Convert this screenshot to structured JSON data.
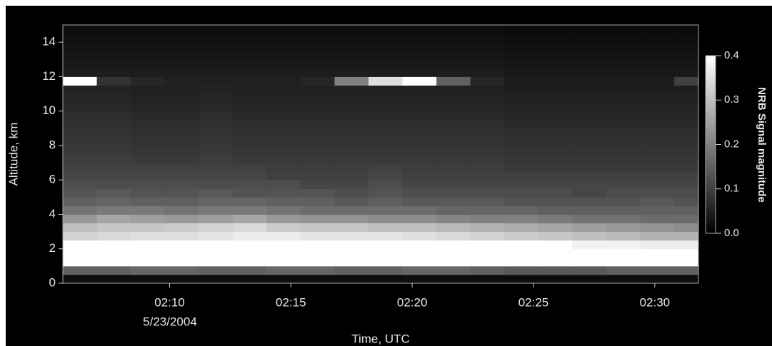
{
  "chart_data": {
    "type": "heatmap",
    "x_label": "Time, UTC",
    "y_label": "Altitude, km",
    "colorbar_label": "NRB Signal magnitude",
    "xlim": [
      5.6,
      31.8
    ],
    "ylim": [
      0,
      15
    ],
    "xticks": [
      {
        "value": 10,
        "label": "02:10"
      },
      {
        "value": 15,
        "label": "02:15"
      },
      {
        "value": 20,
        "label": "02:20"
      },
      {
        "value": 25,
        "label": "02:25"
      },
      {
        "value": 30,
        "label": "02:30"
      }
    ],
    "date_label": "5/23/2004",
    "yticks": [
      0,
      2,
      4,
      6,
      8,
      10,
      12,
      14
    ],
    "clim": [
      0,
      0.4
    ],
    "cticks": [
      {
        "value": 0.4,
        "label": "0.4"
      },
      {
        "value": 0.3,
        "label": "0.3"
      },
      {
        "value": 0.2,
        "label": "0.2"
      },
      {
        "value": 0.1,
        "label": "0.1"
      },
      {
        "value": 0,
        "label": "0.0"
      }
    ],
    "x_edges": [
      5.6,
      7,
      8.4,
      9.8,
      11.2,
      12.6,
      14,
      15.4,
      16.8,
      18.2,
      19.6,
      21,
      22.4,
      23.8,
      25.2,
      26.6,
      28,
      29.4,
      30.8,
      31.8
    ],
    "y_edges": [
      0,
      0.5,
      1,
      1.5,
      2,
      2.5,
      3,
      3.5,
      4,
      4.5,
      5,
      5.5,
      6,
      6.5,
      7,
      7.5,
      8,
      8.5,
      9,
      9.5,
      10,
      10.5,
      11,
      11.5,
      12,
      12.5,
      13,
      13.5,
      14,
      14.5,
      15
    ],
    "z": [
      [
        0.02,
        0.02,
        0.02,
        0.02,
        0.02,
        0.02,
        0.02,
        0.02,
        0.02,
        0.02,
        0.02,
        0.02,
        0.02,
        0.02,
        0.02,
        0.02,
        0.02,
        0.02,
        0.02
      ],
      [
        0.15,
        0.15,
        0.16,
        0.16,
        0.15,
        0.15,
        0.16,
        0.16,
        0.15,
        0.15,
        0.16,
        0.16,
        0.15,
        0.14,
        0.14,
        0.14,
        0.15,
        0.15,
        0.15
      ],
      [
        0.42,
        0.42,
        0.42,
        0.42,
        0.42,
        0.42,
        0.42,
        0.42,
        0.42,
        0.42,
        0.42,
        0.42,
        0.42,
        0.42,
        0.42,
        0.42,
        0.42,
        0.42,
        0.42
      ],
      [
        0.45,
        0.45,
        0.45,
        0.45,
        0.45,
        0.45,
        0.45,
        0.45,
        0.45,
        0.45,
        0.45,
        0.45,
        0.45,
        0.45,
        0.45,
        0.45,
        0.45,
        0.45,
        0.45
      ],
      [
        0.42,
        0.42,
        0.43,
        0.43,
        0.43,
        0.44,
        0.44,
        0.44,
        0.44,
        0.44,
        0.44,
        0.43,
        0.42,
        0.4,
        0.4,
        0.38,
        0.38,
        0.37,
        0.37
      ],
      [
        0.33,
        0.34,
        0.35,
        0.35,
        0.36,
        0.37,
        0.37,
        0.36,
        0.36,
        0.36,
        0.35,
        0.34,
        0.33,
        0.32,
        0.31,
        0.3,
        0.29,
        0.28,
        0.28
      ],
      [
        0.3,
        0.31,
        0.31,
        0.32,
        0.33,
        0.34,
        0.32,
        0.31,
        0.31,
        0.3,
        0.3,
        0.29,
        0.28,
        0.27,
        0.26,
        0.25,
        0.24,
        0.23,
        0.22
      ],
      [
        0.24,
        0.26,
        0.25,
        0.24,
        0.25,
        0.26,
        0.24,
        0.23,
        0.23,
        0.22,
        0.22,
        0.21,
        0.2,
        0.2,
        0.19,
        0.18,
        0.18,
        0.17,
        0.17
      ],
      [
        0.18,
        0.19,
        0.19,
        0.18,
        0.19,
        0.19,
        0.18,
        0.17,
        0.17,
        0.17,
        0.17,
        0.16,
        0.16,
        0.16,
        0.15,
        0.15,
        0.15,
        0.15,
        0.15
      ],
      [
        0.15,
        0.16,
        0.15,
        0.15,
        0.16,
        0.16,
        0.15,
        0.15,
        0.14,
        0.15,
        0.14,
        0.14,
        0.14,
        0.13,
        0.13,
        0.13,
        0.13,
        0.14,
        0.13
      ],
      [
        0.13,
        0.14,
        0.13,
        0.13,
        0.14,
        0.13,
        0.13,
        0.13,
        0.12,
        0.13,
        0.12,
        0.12,
        0.12,
        0.12,
        0.12,
        0.11,
        0.12,
        0.12,
        0.12
      ],
      [
        0.12,
        0.12,
        0.12,
        0.12,
        0.12,
        0.12,
        0.12,
        0.11,
        0.11,
        0.12,
        0.11,
        0.11,
        0.11,
        0.11,
        0.11,
        0.11,
        0.11,
        0.11,
        0.11
      ],
      [
        0.11,
        0.11,
        0.11,
        0.11,
        0.11,
        0.11,
        0.1,
        0.1,
        0.1,
        0.11,
        0.1,
        0.1,
        0.1,
        0.1,
        0.1,
        0.1,
        0.1,
        0.1,
        0.1
      ],
      [
        0.1,
        0.1,
        0.1,
        0.1,
        0.1,
        0.1,
        0.095,
        0.095,
        0.095,
        0.1,
        0.095,
        0.095,
        0.095,
        0.09,
        0.09,
        0.09,
        0.09,
        0.09,
        0.09
      ],
      [
        0.095,
        0.095,
        0.09,
        0.09,
        0.095,
        0.09,
        0.09,
        0.09,
        0.09,
        0.09,
        0.09,
        0.09,
        0.09,
        0.085,
        0.085,
        0.085,
        0.085,
        0.085,
        0.085
      ],
      [
        0.09,
        0.09,
        0.085,
        0.085,
        0.09,
        0.085,
        0.085,
        0.085,
        0.085,
        0.085,
        0.085,
        0.085,
        0.085,
        0.08,
        0.08,
        0.08,
        0.08,
        0.08,
        0.08
      ],
      [
        0.085,
        0.085,
        0.08,
        0.08,
        0.085,
        0.08,
        0.08,
        0.08,
        0.08,
        0.08,
        0.08,
        0.08,
        0.08,
        0.075,
        0.075,
        0.075,
        0.075,
        0.075,
        0.075
      ],
      [
        0.08,
        0.08,
        0.075,
        0.075,
        0.08,
        0.075,
        0.075,
        0.075,
        0.075,
        0.075,
        0.075,
        0.075,
        0.075,
        0.07,
        0.07,
        0.07,
        0.07,
        0.07,
        0.07
      ],
      [
        0.075,
        0.075,
        0.07,
        0.07,
        0.075,
        0.07,
        0.07,
        0.07,
        0.07,
        0.07,
        0.07,
        0.07,
        0.07,
        0.065,
        0.065,
        0.065,
        0.065,
        0.065,
        0.065
      ],
      [
        0.07,
        0.07,
        0.065,
        0.065,
        0.07,
        0.065,
        0.065,
        0.065,
        0.065,
        0.065,
        0.065,
        0.065,
        0.065,
        0.06,
        0.06,
        0.06,
        0.06,
        0.06,
        0.06
      ],
      [
        0.065,
        0.065,
        0.06,
        0.06,
        0.065,
        0.06,
        0.06,
        0.06,
        0.06,
        0.06,
        0.06,
        0.06,
        0.06,
        0.055,
        0.055,
        0.055,
        0.055,
        0.055,
        0.055
      ],
      [
        0.06,
        0.06,
        0.055,
        0.055,
        0.06,
        0.055,
        0.055,
        0.055,
        0.055,
        0.055,
        0.055,
        0.055,
        0.055,
        0.05,
        0.05,
        0.05,
        0.05,
        0.05,
        0.05
      ],
      [
        0.055,
        0.055,
        0.05,
        0.05,
        0.055,
        0.05,
        0.05,
        0.05,
        0.05,
        0.05,
        0.05,
        0.05,
        0.05,
        0.045,
        0.045,
        0.045,
        0.045,
        0.045,
        0.045
      ],
      [
        0.4,
        0.08,
        0.06,
        0.05,
        0.05,
        0.05,
        0.05,
        0.06,
        0.2,
        0.35,
        0.4,
        0.15,
        0.06,
        0.045,
        0.045,
        0.045,
        0.045,
        0.045,
        0.1
      ],
      [
        0.045,
        0.045,
        0.045,
        0.045,
        0.045,
        0.045,
        0.045,
        0.045,
        0.045,
        0.045,
        0.045,
        0.045,
        0.045,
        0.04,
        0.04,
        0.04,
        0.04,
        0.04,
        0.04
      ],
      [
        0.04,
        0.04,
        0.04,
        0.04,
        0.04,
        0.04,
        0.04,
        0.04,
        0.04,
        0.04,
        0.04,
        0.04,
        0.04,
        0.035,
        0.035,
        0.035,
        0.035,
        0.035,
        0.035
      ],
      [
        0.035,
        0.035,
        0.035,
        0.035,
        0.035,
        0.035,
        0.035,
        0.035,
        0.035,
        0.035,
        0.035,
        0.035,
        0.035,
        0.03,
        0.03,
        0.03,
        0.03,
        0.03,
        0.03
      ],
      [
        0.03,
        0.03,
        0.03,
        0.03,
        0.03,
        0.03,
        0.03,
        0.03,
        0.03,
        0.03,
        0.03,
        0.03,
        0.03,
        0.025,
        0.025,
        0.025,
        0.025,
        0.025,
        0.025
      ],
      [
        0.025,
        0.025,
        0.025,
        0.025,
        0.025,
        0.025,
        0.025,
        0.025,
        0.025,
        0.025,
        0.025,
        0.025,
        0.025,
        0.02,
        0.02,
        0.02,
        0.02,
        0.02,
        0.02
      ],
      [
        0.02,
        0.02,
        0.02,
        0.02,
        0.02,
        0.02,
        0.02,
        0.02,
        0.02,
        0.02,
        0.02,
        0.02,
        0.02,
        0.015,
        0.015,
        0.015,
        0.015,
        0.015,
        0.015
      ]
    ]
  }
}
